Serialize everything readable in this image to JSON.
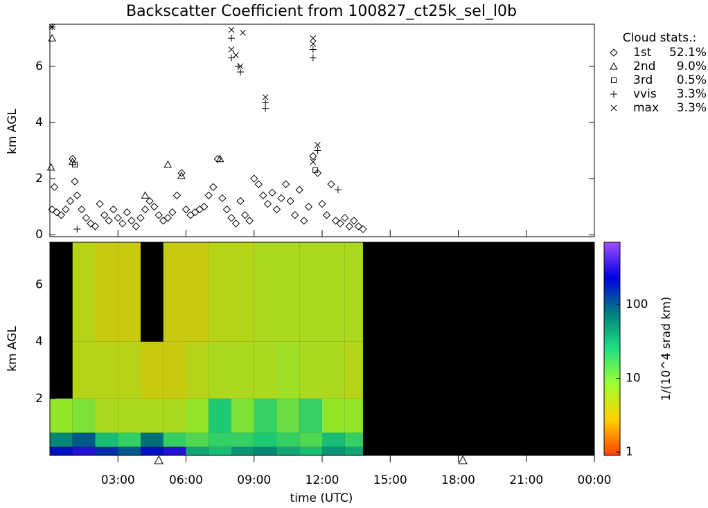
{
  "chart_data": [
    {
      "type": "scatter",
      "title": "Backscatter Coefficient from 100827_ct25k_sel_l0b",
      "y_label": "km AGL",
      "legend_title": "Cloud stats.:",
      "xlim": [
        0,
        24
      ],
      "ylim": [
        -0.07,
        7.5
      ],
      "yticks": [
        0,
        2,
        4,
        6
      ],
      "color": "#000000",
      "series": [
        {
          "name": "1st",
          "stat": "52.1%",
          "marker": "diamond",
          "x": [
            0.1,
            0.2,
            0.3,
            0.5,
            0.7,
            0.9,
            1.0,
            1.1,
            1.2,
            1.4,
            1.6,
            1.8,
            2.0,
            2.2,
            2.4,
            2.6,
            2.8,
            3.0,
            3.2,
            3.4,
            3.6,
            3.8,
            4.0,
            4.2,
            4.4,
            4.6,
            4.8,
            5.0,
            5.2,
            5.4,
            5.6,
            5.8,
            6.0,
            6.2,
            6.4,
            6.6,
            6.8,
            7.0,
            7.2,
            7.4,
            7.6,
            7.8,
            8.0,
            8.2,
            8.4,
            8.6,
            8.8,
            9.0,
            9.2,
            9.4,
            9.6,
            9.8,
            10.0,
            10.2,
            10.4,
            10.6,
            10.8,
            11.0,
            11.2,
            11.4,
            11.6,
            11.8,
            12.0,
            12.2,
            12.4,
            12.6,
            12.8,
            13.0,
            13.2,
            13.4,
            13.6,
            13.8
          ],
          "values": [
            0.9,
            1.7,
            0.8,
            0.7,
            0.9,
            1.2,
            2.7,
            1.9,
            1.4,
            0.9,
            0.6,
            0.4,
            0.3,
            1.1,
            0.7,
            0.5,
            0.9,
            0.6,
            0.4,
            0.8,
            0.5,
            0.3,
            0.6,
            0.9,
            1.2,
            1.0,
            0.7,
            0.5,
            0.6,
            0.8,
            1.4,
            2.2,
            0.9,
            0.7,
            0.8,
            0.9,
            1.0,
            1.4,
            1.7,
            2.7,
            1.3,
            0.9,
            0.6,
            0.4,
            1.2,
            0.7,
            0.5,
            2.0,
            1.8,
            1.4,
            1.1,
            1.5,
            0.9,
            1.3,
            1.8,
            1.2,
            0.7,
            1.6,
            0.5,
            1.0,
            2.8,
            2.2,
            1.1,
            0.7,
            1.8,
            0.5,
            0.4,
            0.6,
            0.3,
            0.5,
            0.3,
            0.2
          ]
        },
        {
          "name": "2nd",
          "stat": "9.0%",
          "marker": "triangle",
          "x": [
            0.05,
            1.0,
            4.2,
            5.2,
            7.5,
            5.8,
            0.1
          ],
          "values": [
            2.4,
            2.6,
            1.4,
            2.5,
            2.7,
            2.1,
            7.0
          ]
        },
        {
          "name": "3rd",
          "stat": "0.5%",
          "marker": "square",
          "x": [
            1.1,
            11.7
          ],
          "values": [
            2.5,
            2.3
          ]
        },
        {
          "name": "vvis",
          "stat": "3.3%",
          "marker": "plus",
          "x": [
            0.1,
            8.0,
            8.0,
            8.3,
            8.4,
            9.5,
            9.5,
            11.6,
            11.6,
            11.8,
            1.2,
            12.7
          ],
          "values": [
            7.4,
            6.3,
            7.0,
            6.0,
            5.8,
            4.5,
            4.7,
            6.3,
            6.6,
            3.0,
            0.2,
            1.6
          ]
        },
        {
          "name": "max",
          "stat": "3.3%",
          "marker": "cross",
          "x": [
            0.1,
            8.0,
            8.0,
            8.2,
            8.5,
            8.4,
            9.5,
            11.6,
            11.6,
            11.8,
            11.6
          ],
          "values": [
            7.4,
            7.3,
            6.6,
            6.4,
            7.2,
            6.0,
            4.9,
            7.0,
            6.8,
            3.2,
            2.6
          ]
        }
      ]
    },
    {
      "type": "heatmap",
      "x_label": "time (UTC)",
      "y_label": "km AGL",
      "colorbar_label": "1/(10^4 srad km)",
      "xlim": [
        0,
        24
      ],
      "ylim": [
        0,
        7.5
      ],
      "yticks": [
        2,
        4,
        6
      ],
      "xticks": [
        {
          "value": 3,
          "label": "03:00"
        },
        {
          "value": 6,
          "label": "06:00"
        },
        {
          "value": 9,
          "label": "09:00"
        },
        {
          "value": 12,
          "label": "12:00"
        },
        {
          "value": 15,
          "label": "15:00"
        },
        {
          "value": 18,
          "label": "18:00"
        },
        {
          "value": 21,
          "label": "21:00"
        },
        {
          "value": 24,
          "label": "00:00"
        }
      ],
      "zlim": [
        0.9,
        700
      ],
      "zticks": [
        1,
        10,
        100
      ],
      "zscale": "log",
      "colormap": [
        "#ff4000",
        "#ffd000",
        "#a0ff30",
        "#20e080",
        "#008080",
        "#0000e0",
        "#a050ff"
      ],
      "x_edges": [
        0,
        1,
        2,
        3,
        4,
        5,
        6,
        7,
        8,
        9,
        10,
        11,
        12,
        13,
        13.8
      ],
      "y_edges": [
        0,
        0.3,
        0.8,
        2,
        4,
        7.5
      ],
      "z": [
        [
          200,
          300,
          150,
          100,
          200,
          300,
          40,
          30,
          50,
          60,
          40,
          30,
          50,
          40
        ],
        [
          60,
          100,
          30,
          20,
          80,
          20,
          15,
          20,
          20,
          25,
          20,
          15,
          30,
          20
        ],
        [
          8,
          10,
          6,
          6,
          6,
          6,
          8,
          25,
          10,
          20,
          12,
          20,
          8,
          8
        ],
        [
          null,
          5,
          5,
          5,
          4,
          4,
          5,
          6,
          6,
          6,
          7,
          6,
          6,
          5
        ],
        [
          null,
          5,
          4,
          4,
          null,
          4,
          4,
          5,
          5,
          6,
          6,
          6,
          6,
          6
        ]
      ],
      "event_markers_x": [
        4.8,
        18.2
      ]
    }
  ]
}
